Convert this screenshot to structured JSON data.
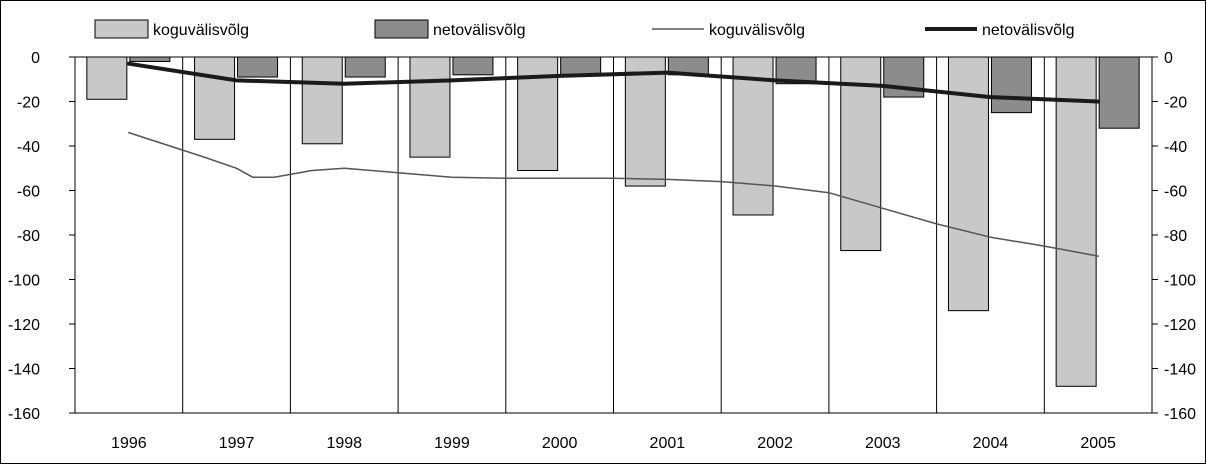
{
  "chart_data": {
    "type": "bar",
    "categories": [
      "1996",
      "1997",
      "1998",
      "1999",
      "2000",
      "2001",
      "2002",
      "2003",
      "2004",
      "2005"
    ],
    "ylim": [
      -160,
      0
    ],
    "yticks": [
      0,
      -20,
      -40,
      -60,
      -80,
      -100,
      -120,
      -140,
      -160
    ],
    "ytick_labels": [
      "0",
      "-20",
      "-40",
      "-60",
      "-80",
      "-100",
      "-120",
      "-140",
      "-160"
    ],
    "y2ticks": [
      0,
      -20,
      -40,
      -60,
      -80,
      -100,
      -120,
      -140,
      -160
    ],
    "y2tick_labels": [
      "0",
      "-20",
      "-40",
      "-60",
      "-80",
      "-100",
      "-120",
      "-140",
      "-160"
    ],
    "grid": "vertical lines between categories",
    "legend_position": "top",
    "series": [
      {
        "name": "koguvälisvõlg",
        "kind": "bar",
        "color": "#c8c8c8",
        "values": [
          -19,
          -37,
          -39,
          -45,
          -51,
          -58,
          -71,
          -87,
          -114,
          -148
        ]
      },
      {
        "name": "netovälisvõlg",
        "kind": "bar",
        "color": "#8c8c8c",
        "values": [
          -2,
          -9,
          -9,
          -8,
          -8,
          -8,
          -12,
          -18,
          -25,
          -32
        ]
      },
      {
        "name": "koguvälisvõlg",
        "kind": "line",
        "color": "#555555",
        "width": 1.5,
        "x": [
          0,
          0.7,
          1,
          1.15,
          1.35,
          1.7,
          2,
          2.5,
          3,
          3.5,
          4,
          4.5,
          5,
          5.5,
          6,
          6.5,
          7,
          7.5,
          8,
          8.5,
          9
        ],
        "values": [
          -34,
          -45,
          -50,
          -54,
          -54,
          -51,
          -50,
          -52,
          -54,
          -54.5,
          -54.5,
          -54.5,
          -55,
          -56,
          -58,
          -61,
          -68,
          -75,
          -81,
          -85,
          -89.5
        ]
      },
      {
        "name": "netovälisvõlg",
        "kind": "line",
        "color": "#1a1a1a",
        "width": 4,
        "values": [
          -3,
          -10.5,
          -12,
          -10.5,
          -8.5,
          -7,
          -10.5,
          -13,
          -18,
          -20
        ]
      }
    ]
  }
}
